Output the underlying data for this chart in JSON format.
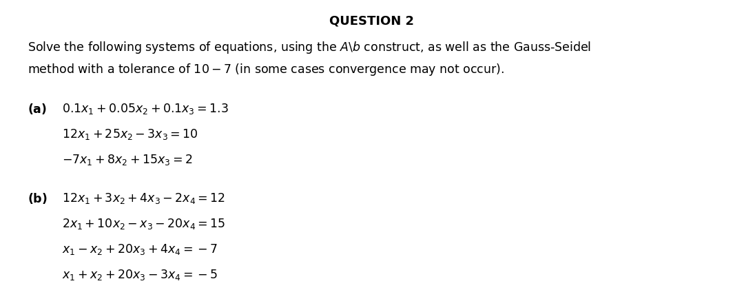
{
  "title": "QUESTION 2",
  "bg_color": "#ffffff",
  "text_color": "#000000",
  "figsize": [
    10.8,
    4.34
  ],
  "dpi": 100,
  "title_fontsize": 13,
  "body_fontsize": 12.5,
  "eq_fontsize": 12.5
}
